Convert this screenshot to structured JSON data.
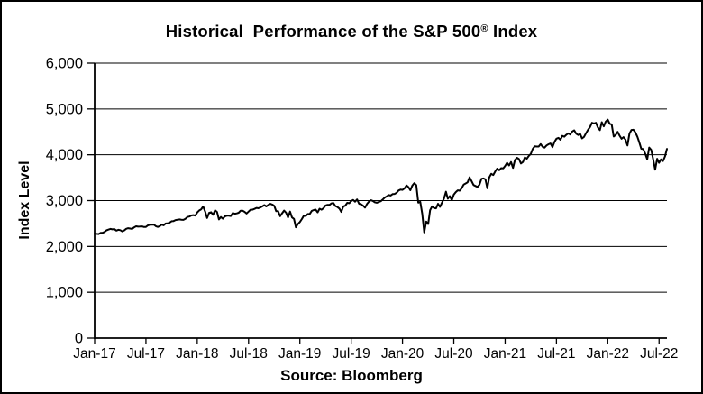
{
  "header": {
    "title_main": "Historical  Performance of the S&P 500",
    "title_reg": "®",
    "title_end": " Index"
  },
  "source": "Source: Bloomberg",
  "colors": {
    "background": "#ffffff",
    "foreground": "#000000",
    "line": "#000000"
  },
  "chart_data": {
    "type": "line",
    "title": "Historical Performance of the S&P 500® Index",
    "xlabel": "",
    "ylabel": "Index Level",
    "source": "Source: Bloomberg",
    "ylim": [
      0,
      6000
    ],
    "grid": "horizontal-only",
    "legend": "none",
    "y_tick_values": [
      0,
      1000,
      2000,
      3000,
      4000,
      5000,
      6000
    ],
    "y_tick_labels": [
      "0",
      "1,000",
      "2,000",
      "3,000",
      "4,000",
      "5,000",
      "6,000"
    ],
    "x_tick_labels": [
      "Jan-17",
      "Jul-17",
      "Jan-18",
      "Jul-18",
      "Jan-19",
      "Jul-19",
      "Jan-20",
      "Jul-20",
      "Jan-21",
      "Jul-21",
      "Jan-22",
      "Jul-22"
    ],
    "x_tick_indices": [
      0,
      26,
      52,
      78,
      104,
      130,
      156,
      182,
      208,
      234,
      260,
      286
    ],
    "series": [
      {
        "name": "S&P 500 Index Level",
        "frequency": "weekly",
        "start": "Jan-2017",
        "end": "Jul-2022",
        "color": "#000000",
        "values": [
          2277,
          2275,
          2271,
          2295,
          2297,
          2316,
          2351,
          2367,
          2383,
          2373,
          2378,
          2344,
          2363,
          2355,
          2329,
          2349,
          2384,
          2399,
          2391,
          2382,
          2416,
          2439,
          2432,
          2433,
          2438,
          2423,
          2425,
          2459,
          2473,
          2472,
          2477,
          2441,
          2426,
          2443,
          2477,
          2461,
          2500,
          2502,
          2519,
          2549,
          2553,
          2575,
          2581,
          2588,
          2582,
          2579,
          2602,
          2642,
          2652,
          2676,
          2683,
          2674,
          2743,
          2786,
          2810,
          2873,
          2762,
          2620,
          2732,
          2747,
          2691,
          2787,
          2752,
          2588,
          2641,
          2604,
          2656,
          2670,
          2670,
          2663,
          2728,
          2713,
          2721,
          2735,
          2779,
          2780,
          2755,
          2718,
          2760,
          2801,
          2802,
          2819,
          2840,
          2833,
          2850,
          2875,
          2902,
          2872,
          2905,
          2930,
          2914,
          2886,
          2767,
          2768,
          2659,
          2723,
          2781,
          2736,
          2633,
          2760,
          2633,
          2600,
          2417,
          2486,
          2532,
          2596,
          2671,
          2665,
          2707,
          2708,
          2776,
          2793,
          2803,
          2743,
          2822,
          2801,
          2834,
          2893,
          2907,
          2905,
          2940,
          2946,
          2881,
          2860,
          2826,
          2752,
          2873,
          2887,
          2950,
          2942,
          2990,
          3014,
          2977,
          3026,
          2932,
          2919,
          2889,
          2847,
          2926,
          2979,
          3007,
          2992,
          2962,
          2952,
          2970,
          2986,
          3023,
          3067,
          3093,
          3120,
          3110,
          3141,
          3146,
          3169,
          3221,
          3240,
          3235,
          3265,
          3330,
          3295,
          3226,
          3328,
          3380,
          3338,
          2954,
          2972,
          2711,
          2305,
          2541,
          2489,
          2790,
          2875,
          2837,
          2831,
          2930,
          2864,
          2955,
          3044,
          3194,
          3041,
          3098,
          3009,
          3130,
          3185,
          3225,
          3216,
          3271,
          3351,
          3373,
          3397,
          3508,
          3427,
          3341,
          3319,
          3298,
          3348,
          3477,
          3484,
          3465,
          3270,
          3509,
          3585,
          3558,
          3638,
          3699,
          3663,
          3709,
          3703,
          3756,
          3825,
          3768,
          3841,
          3714,
          3887,
          3935,
          3907,
          3811,
          3842,
          3943,
          3913,
          3975,
          4020,
          4129,
          4185,
          4180,
          4181,
          4233,
          4174,
          4156,
          4204,
          4230,
          4247,
          4166,
          4281,
          4352,
          4370,
          4327,
          4412,
          4395,
          4437,
          4468,
          4442,
          4509,
          4535,
          4459,
          4433,
          4455,
          4357,
          4391,
          4471,
          4545,
          4605,
          4698,
          4683,
          4698,
          4595,
          4538,
          4712,
          4621,
          4726,
          4766,
          4677,
          4663,
          4398,
          4432,
          4501,
          4419,
          4349,
          4385,
          4329,
          4204,
          4463,
          4543,
          4546,
          4488,
          4393,
          4272,
          4132,
          4123,
          4024,
          3901,
          4158,
          4109,
          3901,
          3675,
          3912,
          3825,
          3899,
          3863,
          3962,
          4130
        ]
      }
    ]
  }
}
